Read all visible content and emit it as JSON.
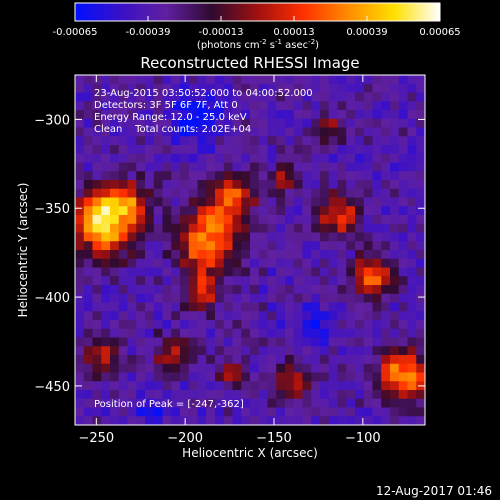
{
  "colorbar": {
    "tick_labels": [
      "-0.00065",
      "-0.00039",
      "-0.00013",
      "0.00013",
      "0.00039",
      "0.00065"
    ],
    "ticks": [
      -0.00065,
      -0.00039,
      -0.00013,
      0.00013,
      0.00039,
      0.00065
    ],
    "range": [
      -0.00065,
      0.00065
    ],
    "units_main": "(photons cm",
    "units_exp1": "-2",
    "units_mid1": " s",
    "units_exp2": "-1",
    "units_mid2": " asec",
    "units_exp3": "-2",
    "units_end": ")",
    "colormap": [
      "#0010ff",
      "#3a10c8",
      "#6020a0",
      "#300a30",
      "#a01010",
      "#ff3000",
      "#ff8c00",
      "#ffe000",
      "#ffffff"
    ]
  },
  "plot": {
    "title": "Reconstructed RHESSI Image",
    "xlabel": "Heliocentric X (arcsec)",
    "ylabel": "Heliocentric Y (arcsec)",
    "xlim": [
      -262,
      -65
    ],
    "ylim": [
      -472,
      -275
    ],
    "x_ticks": [
      -250,
      -200,
      -150,
      -100
    ],
    "x_tick_labels": [
      "−250",
      "−200",
      "−150",
      "−100"
    ],
    "y_ticks": [
      -300,
      -350,
      -400,
      -450
    ],
    "y_tick_labels": [
      "−300",
      "−350",
      "−400",
      "−450"
    ],
    "info_lines": [
      "23-Aug-2015 03:50:52.000 to 04:00:52.000",
      "Detectors: 3F 5F 6F 7F, Att 0",
      "Energy Range: 12.0 - 25.0 keV",
      "Clean    Total counts: 2.02E+04"
    ],
    "peak_label": "Position of Peak = [-247,-362]",
    "peak": [
      -247,
      -362
    ]
  },
  "timestamp": "12-Aug-2017 01:46"
}
